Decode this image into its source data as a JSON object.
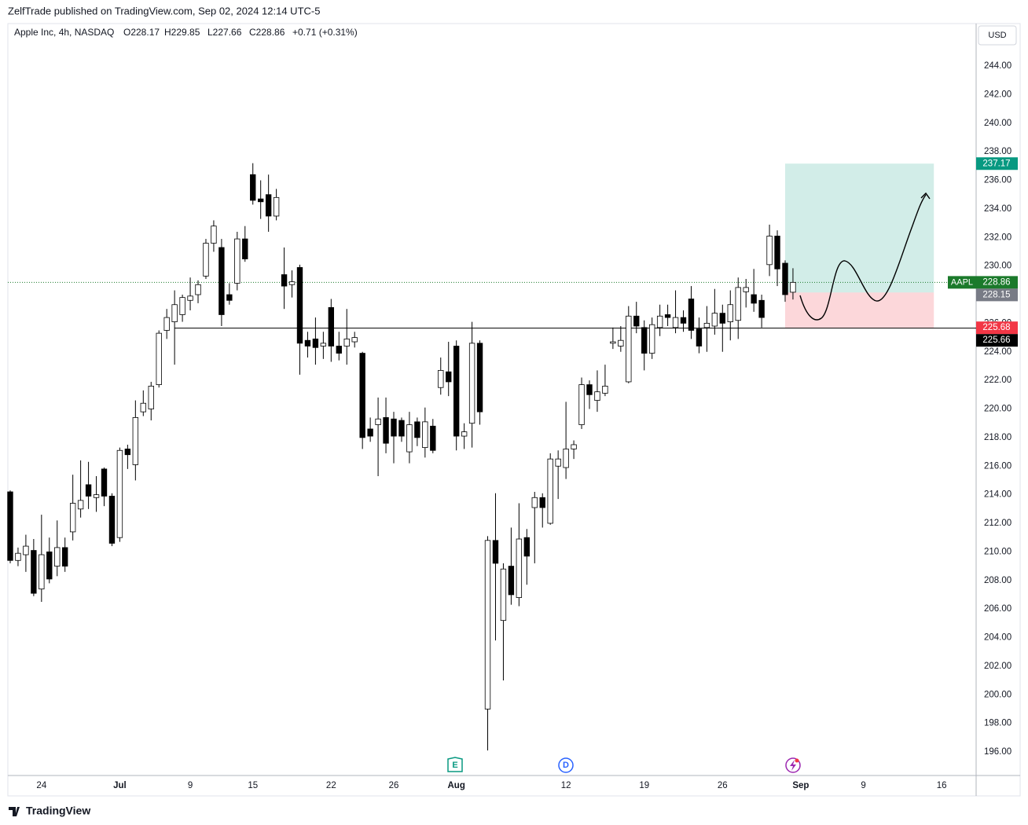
{
  "header": {
    "title": "ZelfTrade published on TradingView.com, Sep 02, 2024 12:14 UTC-5",
    "currency": "USD",
    "brand": "TradingView"
  },
  "chart_data": {
    "type": "candlestick",
    "legend": {
      "symbol": "Apple Inc, 4h, NASDAQ",
      "open": "O228.17",
      "high": "H229.85",
      "low": "L227.66",
      "close": "C228.86",
      "change": "+0.71 (+0.31%)"
    },
    "up_color": "#ffffff",
    "down_color": "#000000",
    "border_color": "#000000",
    "candles": [
      [
        214.2,
        214.3,
        209.2,
        209.4
      ],
      [
        209.4,
        210.3,
        209.0,
        209.9
      ],
      [
        209.8,
        211.2,
        208.6,
        210.4
      ],
      [
        210.1,
        210.9,
        206.9,
        207.1
      ],
      [
        207.4,
        212.6,
        206.5,
        209.8
      ],
      [
        210.0,
        211.0,
        207.8,
        208.1
      ],
      [
        209.0,
        212.2,
        208.3,
        210.3
      ],
      [
        210.3,
        211.0,
        208.6,
        209.0
      ],
      [
        211.4,
        215.4,
        210.8,
        213.4
      ],
      [
        213.0,
        216.4,
        212.4,
        213.6
      ],
      [
        214.7,
        216.3,
        213.0,
        213.9
      ],
      [
        213.8,
        215.3,
        212.8,
        214.0
      ],
      [
        215.8,
        215.9,
        213.2,
        213.9
      ],
      [
        213.9,
        214.1,
        210.4,
        210.6
      ],
      [
        211.0,
        217.3,
        210.7,
        217.1
      ],
      [
        217.2,
        217.5,
        215.8,
        216.8
      ],
      [
        216.1,
        220.6,
        215.0,
        219.4
      ],
      [
        219.8,
        221.3,
        219.5,
        220.4
      ],
      [
        220.0,
        221.9,
        219.2,
        221.6
      ],
      [
        221.7,
        225.5,
        221.5,
        225.3
      ],
      [
        225.5,
        227.0,
        224.9,
        226.4
      ],
      [
        226.1,
        228.3,
        223.1,
        227.3
      ],
      [
        226.6,
        228.0,
        226.1,
        227.8
      ],
      [
        227.6,
        229.2,
        226.9,
        227.9
      ],
      [
        228.0,
        229.0,
        227.4,
        228.7
      ],
      [
        229.3,
        231.9,
        229.1,
        231.6
      ],
      [
        231.6,
        233.2,
        231.0,
        232.8
      ],
      [
        231.3,
        231.9,
        225.8,
        226.6
      ],
      [
        228.0,
        228.8,
        227.3,
        227.6
      ],
      [
        228.8,
        232.4,
        228.3,
        231.9
      ],
      [
        231.9,
        232.8,
        230.3,
        230.5
      ],
      [
        236.4,
        237.2,
        234.3,
        234.6
      ],
      [
        234.7,
        236.0,
        233.3,
        234.5
      ],
      [
        235.0,
        236.4,
        232.4,
        233.5
      ],
      [
        233.5,
        235.4,
        233.2,
        234.8
      ],
      [
        229.4,
        231.3,
        227.0,
        228.6
      ],
      [
        228.7,
        229.7,
        227.8,
        228.9
      ],
      [
        229.9,
        230.1,
        222.4,
        224.6
      ],
      [
        224.8,
        225.4,
        223.6,
        224.4
      ],
      [
        224.9,
        226.4,
        223.1,
        224.3
      ],
      [
        224.4,
        225.4,
        223.5,
        224.6
      ],
      [
        227.1,
        227.7,
        223.3,
        224.4
      ],
      [
        224.4,
        225.4,
        223.4,
        223.9
      ],
      [
        224.4,
        227.0,
        223.1,
        224.9
      ],
      [
        224.7,
        225.4,
        224.3,
        225.0
      ],
      [
        223.9,
        224.0,
        217.2,
        218.0
      ],
      [
        218.6,
        219.4,
        217.7,
        218.1
      ],
      [
        218.9,
        220.8,
        215.3,
        219.3
      ],
      [
        219.4,
        220.8,
        216.9,
        217.6
      ],
      [
        219.3,
        219.8,
        216.2,
        218.1
      ],
      [
        219.2,
        219.4,
        217.7,
        218.1
      ],
      [
        217.0,
        219.8,
        216.2,
        218.9
      ],
      [
        219.1,
        219.4,
        217.4,
        218.0
      ],
      [
        217.3,
        220.1,
        216.6,
        219.1
      ],
      [
        218.8,
        219.3,
        216.9,
        217.1
      ],
      [
        221.5,
        223.6,
        221.0,
        222.7
      ],
      [
        222.6,
        224.7,
        220.9,
        221.9
      ],
      [
        224.4,
        224.8,
        217.1,
        218.1
      ],
      [
        218.1,
        219.0,
        217.2,
        218.4
      ],
      [
        219.0,
        226.1,
        217.3,
        224.6
      ],
      [
        224.6,
        224.8,
        218.9,
        219.8
      ],
      [
        199.0,
        211.1,
        196.1,
        210.8
      ],
      [
        210.8,
        214.1,
        203.8,
        209.2
      ],
      [
        205.2,
        209.2,
        201.0,
        208.8
      ],
      [
        209.0,
        211.7,
        206.3,
        207.0
      ],
      [
        206.8,
        213.4,
        206.2,
        210.9
      ],
      [
        211.0,
        211.6,
        207.7,
        209.7
      ],
      [
        213.1,
        214.2,
        209.2,
        213.8
      ],
      [
        213.8,
        214.1,
        211.7,
        213.1
      ],
      [
        212.0,
        216.9,
        211.9,
        216.5
      ],
      [
        216.0,
        217.1,
        213.7,
        216.5
      ],
      [
        215.9,
        220.5,
        215.1,
        217.2
      ],
      [
        217.2,
        217.8,
        216.5,
        217.5
      ],
      [
        218.9,
        222.2,
        218.6,
        221.7
      ],
      [
        221.7,
        222.0,
        220.0,
        221.0
      ],
      [
        220.6,
        222.7,
        219.8,
        221.2
      ],
      [
        221.1,
        223.1,
        220.9,
        221.6
      ],
      [
        224.6,
        225.7,
        224.2,
        224.7
      ],
      [
        224.4,
        225.8,
        224.0,
        224.8
      ],
      [
        221.9,
        227.2,
        221.8,
        226.5
      ],
      [
        226.5,
        227.5,
        225.3,
        225.8
      ],
      [
        225.7,
        226.2,
        222.7,
        223.9
      ],
      [
        223.9,
        226.4,
        223.5,
        225.9
      ],
      [
        225.7,
        227.3,
        225.1,
        226.5
      ],
      [
        226.6,
        227.3,
        225.8,
        226.4
      ],
      [
        225.7,
        228.3,
        225.3,
        226.4
      ],
      [
        226.4,
        226.9,
        225.4,
        226.0
      ],
      [
        227.7,
        228.6,
        224.9,
        225.5
      ],
      [
        225.6,
        226.4,
        223.9,
        224.4
      ],
      [
        225.7,
        227.2,
        224.0,
        226.0
      ],
      [
        225.8,
        228.4,
        225.2,
        226.7
      ],
      [
        226.7,
        227.3,
        224.0,
        226.0
      ],
      [
        226.1,
        228.3,
        224.8,
        227.3
      ],
      [
        226.2,
        229.2,
        224.9,
        228.5
      ],
      [
        228.2,
        229.1,
        227.1,
        228.5
      ],
      [
        228.0,
        229.8,
        226.8,
        227.4
      ],
      [
        227.6,
        228.0,
        225.7,
        226.4
      ],
      [
        230.1,
        232.9,
        229.3,
        232.1
      ],
      [
        232.1,
        232.5,
        228.6,
        229.8
      ],
      [
        230.2,
        230.4,
        227.5,
        228.0
      ],
      [
        228.17,
        229.85,
        227.66,
        228.86
      ]
    ],
    "xlim": [
      -0.3,
      123.4
    ],
    "xticks": [
      {
        "value": 4,
        "label": "24"
      },
      {
        "value": 14,
        "label": "Jul"
      },
      {
        "value": 23,
        "label": "9"
      },
      {
        "value": 31,
        "label": "15"
      },
      {
        "value": 41,
        "label": "22"
      },
      {
        "value": 49,
        "label": "26"
      },
      {
        "value": 57,
        "label": "Aug"
      },
      {
        "value": 71,
        "label": "12"
      },
      {
        "value": 81,
        "label": "19"
      },
      {
        "value": 91,
        "label": "26"
      },
      {
        "value": 101,
        "label": "Sep"
      },
      {
        "value": 109,
        "label": "9"
      },
      {
        "value": 119,
        "label": "16"
      }
    ],
    "ylim": [
      194.35,
      246.97
    ],
    "yticks": [
      {
        "value": 196,
        "label": "196.00"
      },
      {
        "value": 198,
        "label": "198.00"
      },
      {
        "value": 200,
        "label": "200.00"
      },
      {
        "value": 202,
        "label": "202.00"
      },
      {
        "value": 204,
        "label": "204.00"
      },
      {
        "value": 206,
        "label": "206.00"
      },
      {
        "value": 208,
        "label": "208.00"
      },
      {
        "value": 210,
        "label": "210.00"
      },
      {
        "value": 212,
        "label": "212.00"
      },
      {
        "value": 214,
        "label": "214.00"
      },
      {
        "value": 216,
        "label": "216.00"
      },
      {
        "value": 218,
        "label": "218.00"
      },
      {
        "value": 220,
        "label": "220.00"
      },
      {
        "value": 222,
        "label": "222.00"
      },
      {
        "value": 224,
        "label": "224.00"
      },
      {
        "value": 226,
        "label": "226.00"
      },
      {
        "value": 228,
        "label": "228.00"
      },
      {
        "value": 230,
        "label": "230.00"
      },
      {
        "value": 232,
        "label": "232.00"
      },
      {
        "value": 234,
        "label": "234.00"
      },
      {
        "value": 236,
        "label": "236.00"
      },
      {
        "value": 238,
        "label": "238.00"
      },
      {
        "value": 240,
        "label": "240.00"
      },
      {
        "value": 242,
        "label": "242.00"
      },
      {
        "value": 244,
        "label": "244.00"
      }
    ],
    "grid": false,
    "position": {
      "entry": 228.15,
      "target": 237.17,
      "stop": 225.68,
      "x_start": 99,
      "x_end": 118,
      "entry_color": "#787b86",
      "target_color": "#089981",
      "stop_color": "#f23645"
    },
    "hline": {
      "value": 225.66,
      "x_start": 21,
      "color": "#000000"
    },
    "last_price": {
      "symbol": "AAPL",
      "value": 228.86,
      "color": "#1b7a2b"
    },
    "events": [
      "E",
      "D"
    ]
  }
}
